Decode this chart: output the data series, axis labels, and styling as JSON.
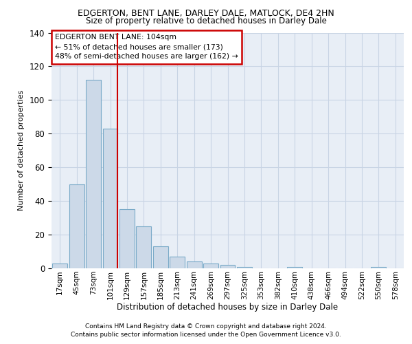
{
  "title1": "EDGERTON, BENT LANE, DARLEY DALE, MATLOCK, DE4 2HN",
  "title2": "Size of property relative to detached houses in Darley Dale",
  "xlabel": "Distribution of detached houses by size in Darley Dale",
  "ylabel": "Number of detached properties",
  "categories": [
    "17sqm",
    "45sqm",
    "73sqm",
    "101sqm",
    "129sqm",
    "157sqm",
    "185sqm",
    "213sqm",
    "241sqm",
    "269sqm",
    "297sqm",
    "325sqm",
    "353sqm",
    "382sqm",
    "410sqm",
    "438sqm",
    "466sqm",
    "494sqm",
    "522sqm",
    "550sqm",
    "578sqm"
  ],
  "bar_values": [
    3,
    50,
    112,
    83,
    35,
    25,
    13,
    7,
    4,
    3,
    2,
    1,
    0,
    0,
    1,
    0,
    0,
    0,
    0,
    1,
    0
  ],
  "bar_color": "#ccd9e8",
  "bar_edge_color": "#7aaac8",
  "grid_color": "#c8d4e4",
  "background_color": "#e8eef6",
  "red_line_index": 3,
  "annotation_line1": "EDGERTON BENT LANE: 104sqm",
  "annotation_line2": "← 51% of detached houses are smaller (173)",
  "annotation_line3": "48% of semi-detached houses are larger (162) →",
  "annotation_box_color": "#ffffff",
  "annotation_box_edge": "#cc0000",
  "footer1": "Contains HM Land Registry data © Crown copyright and database right 2024.",
  "footer2": "Contains public sector information licensed under the Open Government Licence v3.0.",
  "ylim": [
    0,
    140
  ],
  "yticks": [
    0,
    20,
    40,
    60,
    80,
    100,
    120,
    140
  ]
}
